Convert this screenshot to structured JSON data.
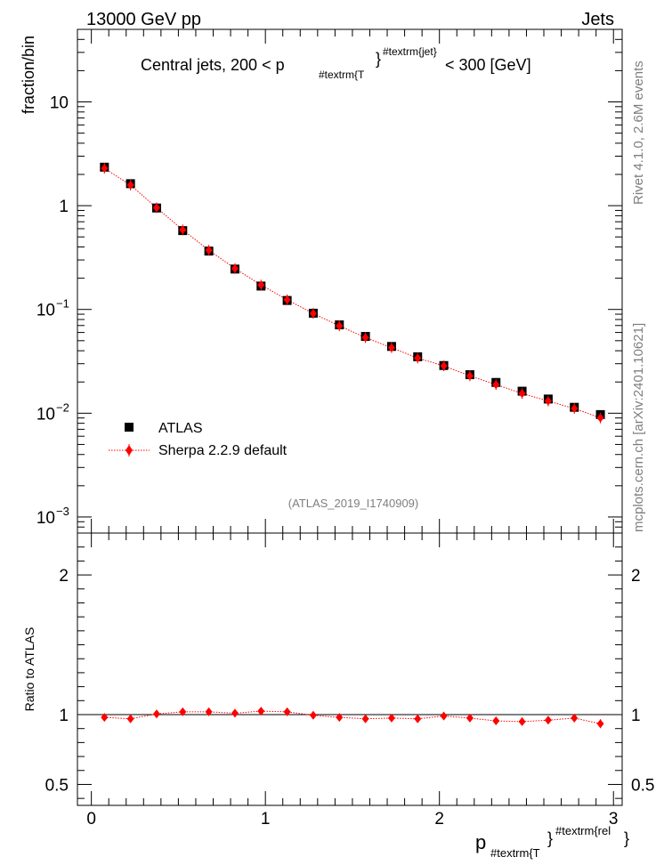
{
  "header": {
    "left": "13000 GeV pp",
    "right": "Jets"
  },
  "side_labels": {
    "rivet": "Rivet 4.1.0, 2.6M events",
    "mcplots": "mcplots.cern.ch [arXiv:2401.10621]"
  },
  "chart_data": [
    {
      "type": "scatter",
      "title_main": "Central jets, 200 < p",
      "title_sub": "#textrm{T",
      "title_sup": "#textrm{jet}",
      "title_tail": " < 300 [GeV]",
      "brace_close": "}",
      "ylabel": "fraction/bin",
      "yscale": "log",
      "ylim": [
        0.0007,
        50
      ],
      "xlim": [
        -0.08,
        3.05
      ],
      "y_ticks": [
        {
          "value": 10,
          "label": "10"
        },
        {
          "value": 1,
          "label": "1"
        },
        {
          "value": 0.1,
          "label": "10",
          "exp": "−1"
        },
        {
          "value": 0.01,
          "label": "10",
          "exp": "−2"
        },
        {
          "value": 0.001,
          "label": "10",
          "exp": "−3"
        }
      ],
      "watermark": "(ATLAS_2019_I1740909)",
      "legend": [
        {
          "name": "ATLAS",
          "marker": "square",
          "color": "#000000"
        },
        {
          "name": "Sherpa 2.2.9 default",
          "marker": "diamond",
          "color": "#ff0000"
        }
      ],
      "x": [
        0.075,
        0.225,
        0.375,
        0.525,
        0.675,
        0.825,
        0.975,
        1.125,
        1.275,
        1.425,
        1.575,
        1.725,
        1.875,
        2.025,
        2.175,
        2.325,
        2.475,
        2.625,
        2.775,
        2.925
      ],
      "series": [
        {
          "name": "ATLAS",
          "color": "#000000",
          "values": [
            2.35,
            1.63,
            0.95,
            0.575,
            0.365,
            0.245,
            0.168,
            0.122,
            0.092,
            0.071,
            0.055,
            0.044,
            0.035,
            0.0288,
            0.0235,
            0.0198,
            0.0163,
            0.0137,
            0.0114,
            0.0097
          ]
        },
        {
          "name": "Sherpa 2.2.9 default",
          "color": "#ff0000",
          "values": [
            2.29,
            1.58,
            0.955,
            0.585,
            0.372,
            0.248,
            0.172,
            0.124,
            0.0915,
            0.0695,
            0.0535,
            0.0428,
            0.034,
            0.0286,
            0.0229,
            0.0189,
            0.0155,
            0.0131,
            0.0111,
            0.009
          ]
        }
      ]
    },
    {
      "type": "scatter",
      "ylabel": "Ratio to ATLAS",
      "ylim": [
        0.35,
        2.3
      ],
      "xlim": [
        -0.08,
        3.05
      ],
      "y_ticks": [
        {
          "value": 2,
          "label": "2"
        },
        {
          "value": 1,
          "label": "1"
        },
        {
          "value": 0.5,
          "label": "0.5"
        }
      ],
      "x_ticks": [
        {
          "value": 0,
          "label": "0"
        },
        {
          "value": 1,
          "label": "1"
        },
        {
          "value": 2,
          "label": "2"
        },
        {
          "value": 3,
          "label": "3"
        }
      ],
      "xlabel_main": "p",
      "xlabel_sub": "#textrm{T",
      "xlabel_sup": "#textrm{rel",
      "brace_close": "}",
      "x": [
        0.075,
        0.225,
        0.375,
        0.525,
        0.675,
        0.825,
        0.975,
        1.125,
        1.275,
        1.425,
        1.575,
        1.725,
        1.875,
        2.025,
        2.175,
        2.325,
        2.475,
        2.625,
        2.775,
        2.925
      ],
      "series": [
        {
          "name": "Sherpa 2.2.9 default / ATLAS",
          "color": "#ff0000",
          "values": [
            0.98,
            0.97,
            1.005,
            1.02,
            1.02,
            1.01,
            1.025,
            1.02,
            0.995,
            0.98,
            0.97,
            0.975,
            0.97,
            0.99,
            0.975,
            0.955,
            0.95,
            0.96,
            0.975,
            0.935
          ],
          "errors": [
            0.01,
            0.01,
            0.01,
            0.01,
            0.01,
            0.01,
            0.012,
            0.012,
            0.012,
            0.012,
            0.014,
            0.014,
            0.015,
            0.016,
            0.018,
            0.02,
            0.022,
            0.025,
            0.028,
            0.032
          ]
        }
      ]
    }
  ]
}
